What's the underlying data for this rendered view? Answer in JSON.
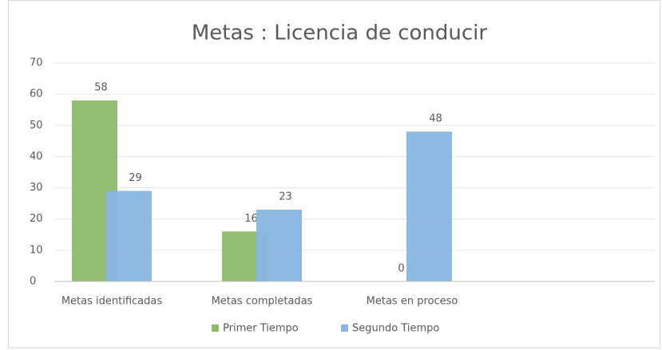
{
  "chart_data": {
    "type": "bar",
    "title": "Metas : Licencia de conducir",
    "categories": [
      "Metas identificadas",
      "Metas completadas",
      "Metas en proceso",
      null
    ],
    "series": [
      {
        "name": "Primer Tiempo",
        "color": "#8dbb6b",
        "values": [
          58,
          16,
          0,
          null
        ]
      },
      {
        "name": "Segundo Tiempo",
        "color": "#88b5e1",
        "values": [
          29,
          23,
          48,
          null
        ]
      }
    ],
    "ylim": [
      0,
      70
    ],
    "yticks": [
      0,
      10,
      20,
      30,
      40,
      50,
      60,
      70
    ],
    "grid": true,
    "legend": "bottom"
  }
}
